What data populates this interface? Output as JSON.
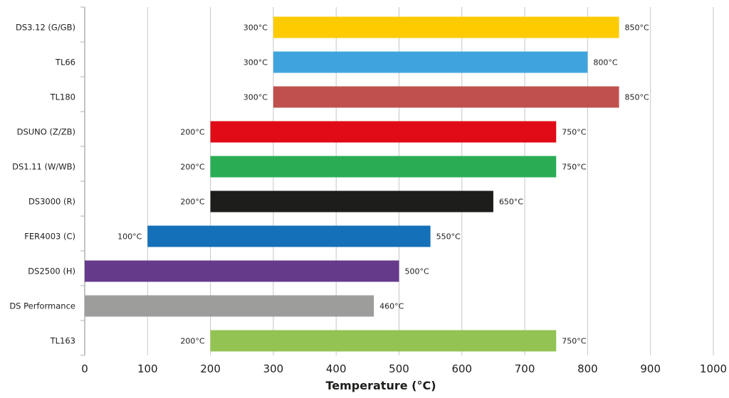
{
  "chart_data": {
    "type": "bar",
    "orientation": "horizontal",
    "style": "floating-range",
    "title": "",
    "xlabel": "Temperature (°C)",
    "ylabel": "",
    "xlim": [
      0,
      1000
    ],
    "xticks": [
      "0",
      "100",
      "200",
      "300",
      "400",
      "500",
      "600",
      "700",
      "800",
      "900",
      "1000"
    ],
    "grid": "vertical",
    "legend": "none",
    "categories": [
      "DS3.12 (G/GB)",
      "TL66",
      "TL180",
      "DSUNO (Z/ZB)",
      "DS1.11 (W/WB)",
      "DS3000 (R)",
      "FER4003 (C)",
      "DS2500 (H)",
      "DS Performance",
      "TL163"
    ],
    "bars": [
      {
        "category": "DS3.12 (G/GB)",
        "min": 300,
        "max": 850,
        "min_label": "300°C",
        "max_label": "850°C",
        "color": "#fecb00"
      },
      {
        "category": "TL66",
        "min": 300,
        "max": 800,
        "min_label": "300°C",
        "max_label": "800°C",
        "color": "#3fa4dd"
      },
      {
        "category": "TL180",
        "min": 300,
        "max": 850,
        "min_label": "300°C",
        "max_label": "850°C",
        "color": "#c0504d"
      },
      {
        "category": "DSUNO (Z/ZB)",
        "min": 200,
        "max": 750,
        "min_label": "200°C",
        "max_label": "750°C",
        "color": "#e00b17"
      },
      {
        "category": "DS1.11 (W/WB)",
        "min": 200,
        "max": 750,
        "min_label": "200°C",
        "max_label": "750°C",
        "color": "#2aac55"
      },
      {
        "category": "DS3000 (R)",
        "min": 200,
        "max": 650,
        "min_label": "200°C",
        "max_label": "650°C",
        "color": "#1d1d1b"
      },
      {
        "category": "FER4003 (C)",
        "min": 100,
        "max": 550,
        "min_label": "100°C",
        "max_label": "550°C",
        "color": "#1470b9"
      },
      {
        "category": "DS2500 (H)",
        "min": 0,
        "max": 500,
        "min_label": "",
        "max_label": "500°C",
        "color": "#653a8b"
      },
      {
        "category": "DS Performance",
        "min": 0,
        "max": 460,
        "min_label": "",
        "max_label": "460°C",
        "color": "#9d9d9c"
      },
      {
        "category": "TL163",
        "min": 200,
        "max": 750,
        "min_label": "200°C",
        "max_label": "750°C",
        "color": "#93c353"
      }
    ]
  }
}
